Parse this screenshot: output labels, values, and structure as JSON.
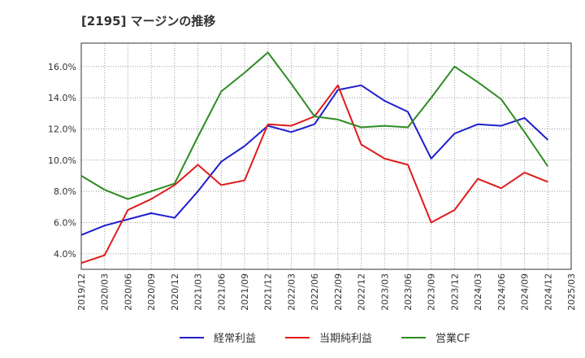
{
  "chart_data": {
    "type": "line",
    "title": "[2195]  マージンの推移",
    "xlabel": "",
    "ylabel": "",
    "ylim": [
      3.0,
      17.5
    ],
    "yticks": [
      4.0,
      6.0,
      8.0,
      10.0,
      12.0,
      14.0,
      16.0
    ],
    "ytick_labels": [
      "4.0%",
      "6.0%",
      "8.0%",
      "10.0%",
      "12.0%",
      "14.0%",
      "16.0%"
    ],
    "x": [
      "2019/12",
      "2020/03",
      "2020/06",
      "2020/09",
      "2020/12",
      "2021/03",
      "2021/06",
      "2021/09",
      "2021/12",
      "2022/03",
      "2022/06",
      "2022/09",
      "2022/12",
      "2023/03",
      "2023/06",
      "2023/09",
      "2023/12",
      "2024/03",
      "2024/06",
      "2024/09",
      "2024/12",
      "2025/03"
    ],
    "grid": true,
    "legend_position": "bottom",
    "series": [
      {
        "name": "経常利益",
        "color": "#1f1fcc",
        "values": [
          5.2,
          5.8,
          6.2,
          6.6,
          6.3,
          8.0,
          9.9,
          10.9,
          12.2,
          11.8,
          12.3,
          14.5,
          14.8,
          13.8,
          13.1,
          10.1,
          11.7,
          12.3,
          12.2,
          12.7,
          11.3,
          null
        ]
      },
      {
        "name": "当期純利益",
        "color": "#e01b1b",
        "values": [
          3.4,
          3.9,
          6.8,
          7.5,
          8.4,
          9.7,
          8.4,
          8.7,
          12.3,
          12.2,
          12.8,
          14.8,
          11.0,
          10.1,
          9.7,
          6.0,
          6.8,
          8.8,
          8.2,
          9.2,
          8.6,
          null
        ]
      },
      {
        "name": "営業CF",
        "color": "#2e8b22",
        "values": [
          9.0,
          8.1,
          7.5,
          8.0,
          8.5,
          11.5,
          14.4,
          15.6,
          16.9,
          14.9,
          12.8,
          12.6,
          12.1,
          12.2,
          12.1,
          14.0,
          16.0,
          15.0,
          13.9,
          11.8,
          9.6,
          null
        ]
      }
    ]
  }
}
